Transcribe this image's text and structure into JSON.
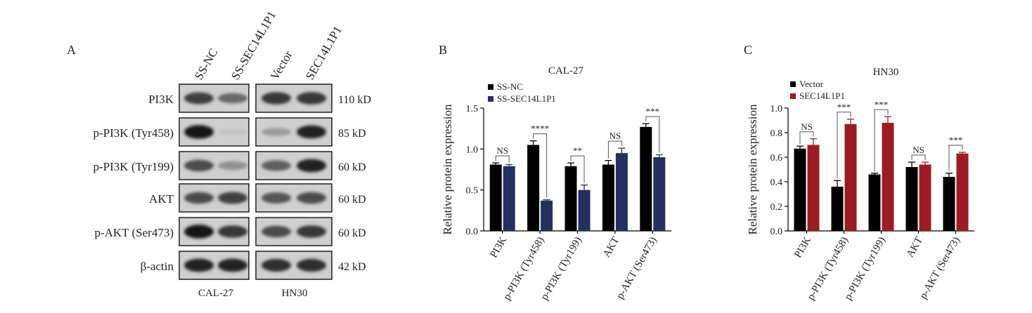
{
  "panels": {
    "a": "A",
    "b": "B",
    "c": "C"
  },
  "blot": {
    "columns": [
      "SS-NC",
      "SS-SEC14L1P1",
      "Vector",
      "SEC14L1P1"
    ],
    "rows": [
      {
        "label": "PI3K",
        "kd": "110 kD"
      },
      {
        "label": "p-PI3K (Tyr458)",
        "kd": "85 kD"
      },
      {
        "label": "p-PI3K (Tyr199)",
        "kd": "60 kD"
      },
      {
        "label": "AKT",
        "kd": "60 kD"
      },
      {
        "label": "p-AKT (Ser473)",
        "kd": "60 kD"
      },
      {
        "label": "β-actin",
        "kd": "42 kD"
      }
    ],
    "cell_lines": [
      "CAL-27",
      "HN30"
    ],
    "band_intensity": [
      [
        0.75,
        0.55,
        0.8,
        0.8
      ],
      [
        0.95,
        0.1,
        0.3,
        0.9
      ],
      [
        0.7,
        0.35,
        0.6,
        0.9
      ],
      [
        0.7,
        0.75,
        0.65,
        0.7
      ],
      [
        0.95,
        0.8,
        0.7,
        0.8
      ],
      [
        0.9,
        0.9,
        0.85,
        0.85
      ]
    ]
  },
  "chart_data": [
    {
      "type": "bar",
      "title": "CAL-27",
      "ylabel": "Relative protein expression",
      "categories": [
        "PI3K",
        "p-PI3K (Tyr458)",
        "p-PI3K (Tyr199)",
        "AKT",
        "p-AKT (Ser473)"
      ],
      "ylim": [
        0,
        1.5
      ],
      "yticks": [
        "0.0",
        "0.5",
        "1.0",
        "1.5"
      ],
      "legend_position": "top-left",
      "series": [
        {
          "name": "SS-NC",
          "color": "#000000",
          "values": [
            0.81,
            1.05,
            0.79,
            0.81,
            1.27
          ],
          "errors": [
            0.02,
            0.05,
            0.04,
            0.05,
            0.04
          ]
        },
        {
          "name": "SS-SEC14L1P1",
          "color": "#23305f",
          "values": [
            0.79,
            0.37,
            0.5,
            0.95,
            0.9
          ],
          "errors": [
            0.02,
            0.01,
            0.06,
            0.06,
            0.03
          ]
        }
      ],
      "significance": [
        "NS",
        "****",
        "**",
        "NS",
        "***"
      ]
    },
    {
      "type": "bar",
      "title": "HN30",
      "ylabel": "Relative protein expression",
      "categories": [
        "PI3K",
        "p-PI3K (Tyr458)",
        "p-PI3K (Tyr199)",
        "AKT",
        "p-AKT (Ser473)"
      ],
      "ylim": [
        0,
        1.0
      ],
      "yticks": [
        "0.0",
        "0.2",
        "0.4",
        "0.6",
        "0.8",
        "1.0"
      ],
      "legend_position": "top-left",
      "series": [
        {
          "name": "Vector",
          "color": "#000000",
          "values": [
            0.67,
            0.36,
            0.46,
            0.52,
            0.44
          ],
          "errors": [
            0.02,
            0.05,
            0.01,
            0.04,
            0.03
          ]
        },
        {
          "name": "SEC14L1P1",
          "color": "#9b1c22",
          "values": [
            0.7,
            0.87,
            0.88,
            0.54,
            0.63
          ],
          "errors": [
            0.05,
            0.04,
            0.05,
            0.02,
            0.01
          ]
        }
      ],
      "significance": [
        "NS",
        "***",
        "***",
        "NS",
        "***"
      ]
    }
  ]
}
